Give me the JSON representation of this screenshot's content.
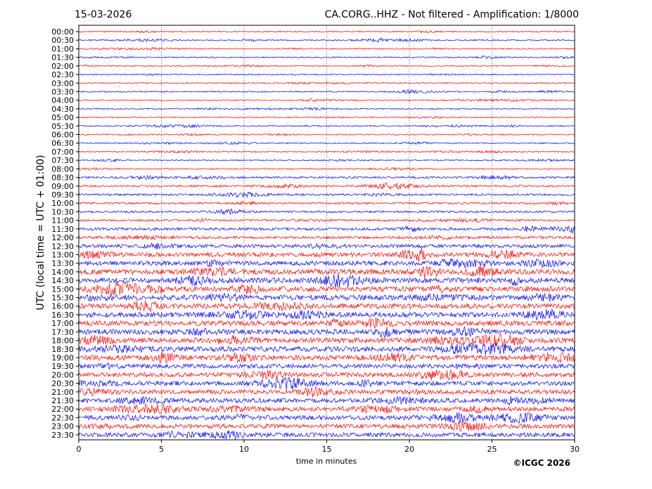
{
  "chart_data": {
    "type": "line",
    "title_left": "15-03-2026",
    "title_right": "CA.CORG..HHZ - Not filtered - Amplification: 1/8000",
    "ylabel": "UTC (local time = UTC + 01:00)",
    "xlabel": "time in minutes",
    "xlim": [
      0,
      30
    ],
    "x_ticks": [
      "0",
      "5",
      "10",
      "15",
      "20",
      "25",
      "30"
    ],
    "x_tick_values": [
      0,
      5,
      10,
      15,
      20,
      25,
      30
    ],
    "grid": "vertical dotted at each x tick",
    "colors": [
      "#ff0000",
      "#0000ff"
    ],
    "rows": [
      "00:00",
      "00:30",
      "01:00",
      "01:30",
      "02:00",
      "02:30",
      "03:00",
      "03:30",
      "04:00",
      "04:30",
      "05:00",
      "05:30",
      "06:00",
      "06:30",
      "07:00",
      "07:30",
      "08:00",
      "08:30",
      "09:00",
      "09:30",
      "10:00",
      "10:30",
      "11:00",
      "11:30",
      "12:00",
      "12:30",
      "13:00",
      "13:30",
      "14:00",
      "14:30",
      "15:00",
      "15:30",
      "16:00",
      "16:30",
      "17:00",
      "17:30",
      "18:00",
      "18:30",
      "19:00",
      "19:30",
      "20:00",
      "20:30",
      "21:00",
      "21:30",
      "22:00",
      "22:30",
      "23:00",
      "23:30"
    ],
    "trace_amplitude_level": [
      1,
      1,
      1,
      1,
      1,
      1,
      1,
      1,
      1,
      1,
      1,
      1,
      1,
      1,
      1,
      1,
      1,
      2,
      2,
      2,
      2,
      2,
      2,
      3,
      3,
      4,
      5,
      5,
      6,
      6,
      6,
      6,
      6,
      6,
      6,
      6,
      6,
      6,
      6,
      5,
      5,
      5,
      5,
      5,
      5,
      5,
      5,
      5
    ]
  },
  "footer": {
    "copyright": "©ICGC 2026"
  }
}
